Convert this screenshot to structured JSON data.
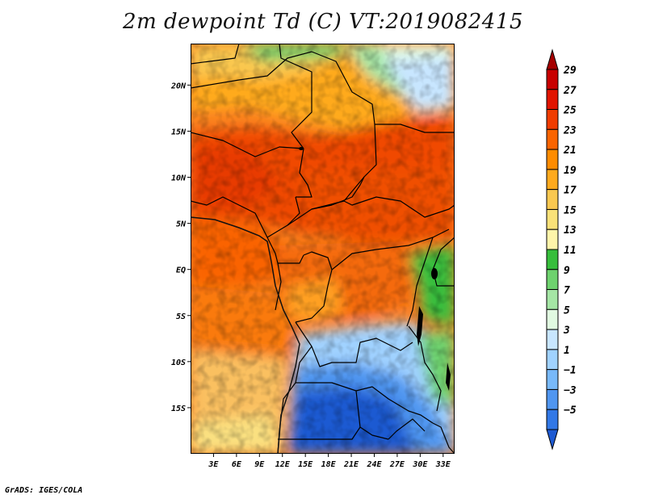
{
  "title": "2m dewpoint Td (C) VT:2019082415",
  "credit": "GrADS: IGES/COLA",
  "map": {
    "variable": "2m dewpoint",
    "units": "C",
    "valid_time": "2019082415",
    "region": "Central Africa",
    "lat_range": [
      -20,
      24.5
    ],
    "lon_range": [
      0,
      34.5
    ],
    "lat_ticks": [
      {
        "value": 20,
        "label": "20N"
      },
      {
        "value": 15,
        "label": "15N"
      },
      {
        "value": 10,
        "label": "10N"
      },
      {
        "value": 5,
        "label": "5N"
      },
      {
        "value": 0,
        "label": "EQ"
      },
      {
        "value": -5,
        "label": "5S"
      },
      {
        "value": -10,
        "label": "10S"
      },
      {
        "value": -15,
        "label": "15S"
      }
    ],
    "lon_ticks": [
      {
        "value": 3,
        "label": "3E"
      },
      {
        "value": 6,
        "label": "6E"
      },
      {
        "value": 9,
        "label": "9E"
      },
      {
        "value": 12,
        "label": "12E"
      },
      {
        "value": 15,
        "label": "15E"
      },
      {
        "value": 18,
        "label": "18E"
      },
      {
        "value": 21,
        "label": "21E"
      },
      {
        "value": 24,
        "label": "24E"
      },
      {
        "value": 27,
        "label": "27E"
      },
      {
        "value": 30,
        "label": "30E"
      },
      {
        "value": 33,
        "label": "33E"
      }
    ]
  },
  "colorbar": {
    "labels": [
      "29",
      "27",
      "25",
      "23",
      "21",
      "19",
      "17",
      "15",
      "13",
      "11",
      "9",
      "7",
      "5",
      "3",
      "1",
      "−1",
      "−3",
      "−5"
    ],
    "colors": [
      "#a50000",
      "#c80000",
      "#e11400",
      "#f03c00",
      "#fa6400",
      "#ff8c00",
      "#ffaa1e",
      "#fac850",
      "#fae178",
      "#fff5aa",
      "#37be3c",
      "#6ed26e",
      "#a5e6a5",
      "#e1fae1",
      "#c8e6ff",
      "#a0d2ff",
      "#78b9fa",
      "#5096f0",
      "#3278e6",
      "#1e5ad2"
    ]
  }
}
